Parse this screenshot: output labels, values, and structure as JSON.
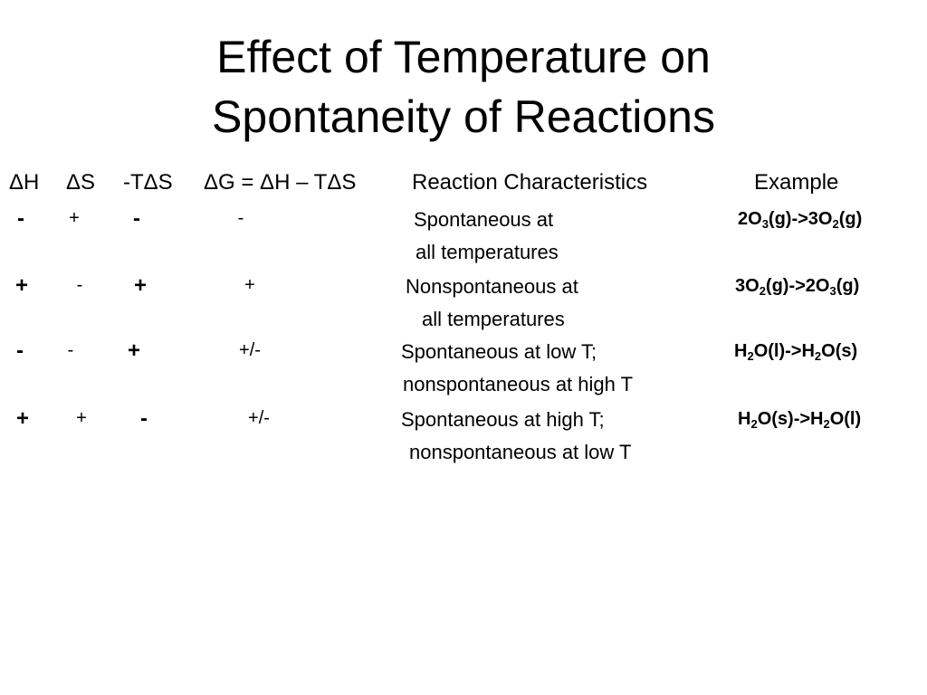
{
  "title": [
    "Effect of Temperature on",
    "Spontaneity of Reactions"
  ],
  "header": [
    "ΔH",
    "ΔS",
    "-TΔS",
    "ΔG = ΔH – TΔS",
    "Reaction Characteristics",
    "Example"
  ],
  "rows": [
    {
      "dH": "-",
      "dS": "+",
      "mTdS": "-",
      "dG": "-",
      "characteristics": [
        "Spontaneous at",
        "all temperatures"
      ],
      "example": [
        "2O",
        "3",
        "(g)->3O",
        "2",
        "(g)"
      ]
    },
    {
      "dH": "+",
      "dS": "-",
      "mTdS": "+",
      "dG": "+",
      "characteristics": [
        "Nonspontaneous at",
        "all temperatures"
      ],
      "example": [
        "3O",
        "2",
        "(g)->2O",
        "3",
        "(g)"
      ]
    },
    {
      "dH": "-",
      "dS": "-",
      "mTdS": "+",
      "dG": "+/-",
      "characteristics": [
        "Spontaneous at low T;",
        "nonspontaneous at high T"
      ],
      "example": [
        "H",
        "2",
        "O(l)->H",
        "2",
        "O(s)"
      ]
    },
    {
      "dH": "+",
      "dS": "+",
      "mTdS": "-",
      "dG": "+/-",
      "characteristics": [
        "Spontaneous at high T;",
        "nonspontaneous at low T"
      ],
      "example": [
        "H",
        "2",
        "O(s)->H",
        "2",
        "O(l)"
      ]
    }
  ]
}
